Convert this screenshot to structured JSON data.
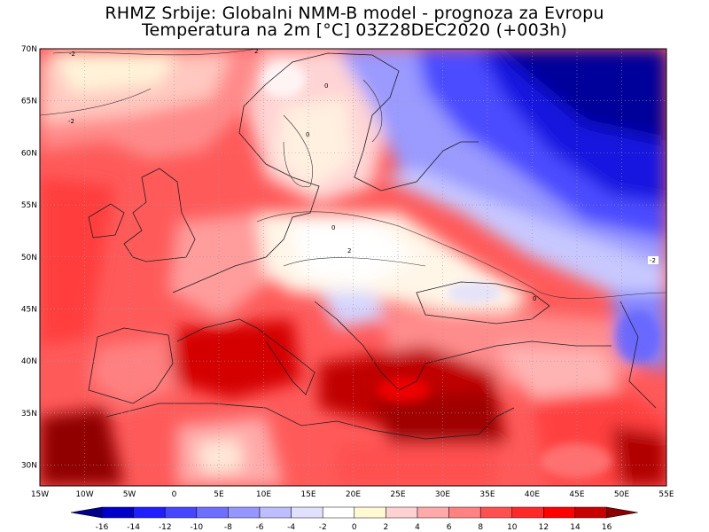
{
  "header": {
    "title_line1": "RHMZ Srbije: Globalni NMM-B model - prognoza za Evropu",
    "title_line2": "Temperatura na 2m [°C] 03Z28DEC2020 (+003h)"
  },
  "map": {
    "lon_range": [
      -15,
      55
    ],
    "lat_range": [
      28,
      70
    ],
    "grid": true,
    "lat_ticks": [
      {
        "value": 70,
        "label": "70N"
      },
      {
        "value": 65,
        "label": "65N"
      },
      {
        "value": 60,
        "label": "60N"
      },
      {
        "value": 55,
        "label": "55N"
      },
      {
        "value": 50,
        "label": "50N"
      },
      {
        "value": 45,
        "label": "45N"
      },
      {
        "value": 40,
        "label": "40N"
      },
      {
        "value": 35,
        "label": "35N"
      },
      {
        "value": 30,
        "label": "30N"
      }
    ],
    "lon_ticks": [
      {
        "value": -15,
        "label": "15W"
      },
      {
        "value": -10,
        "label": "10W"
      },
      {
        "value": -5,
        "label": "5W"
      },
      {
        "value": 0,
        "label": "0"
      },
      {
        "value": 5,
        "label": "5E"
      },
      {
        "value": 10,
        "label": "10E"
      },
      {
        "value": 15,
        "label": "15E"
      },
      {
        "value": 20,
        "label": "20E"
      },
      {
        "value": 25,
        "label": "25E"
      },
      {
        "value": 30,
        "label": "30E"
      },
      {
        "value": 35,
        "label": "35E"
      },
      {
        "value": 40,
        "label": "40E"
      },
      {
        "value": 45,
        "label": "45E"
      },
      {
        "value": 50,
        "label": "50E"
      },
      {
        "value": 55,
        "label": "55E"
      }
    ],
    "contour_labels": [
      "-2",
      "2",
      "-2",
      "0",
      "0",
      "2",
      "0",
      "-2",
      "0"
    ]
  },
  "colorbar": {
    "labels": [
      "-16",
      "-14",
      "-12",
      "-10",
      "-8",
      "-6",
      "-4",
      "-2",
      "0",
      "2",
      "4",
      "6",
      "8",
      "10",
      "12",
      "14",
      "16"
    ],
    "colors": [
      "#00008c",
      "#0000c8",
      "#1e1eff",
      "#4646ff",
      "#6e6eff",
      "#9696ff",
      "#bebeff",
      "#e1e1ff",
      "#ffffff",
      "#fffad2",
      "#ffd2d2",
      "#ffaaaa",
      "#ff8282",
      "#ff5050",
      "#ff2828",
      "#ff0000",
      "#c80000",
      "#8c0000"
    ]
  }
}
